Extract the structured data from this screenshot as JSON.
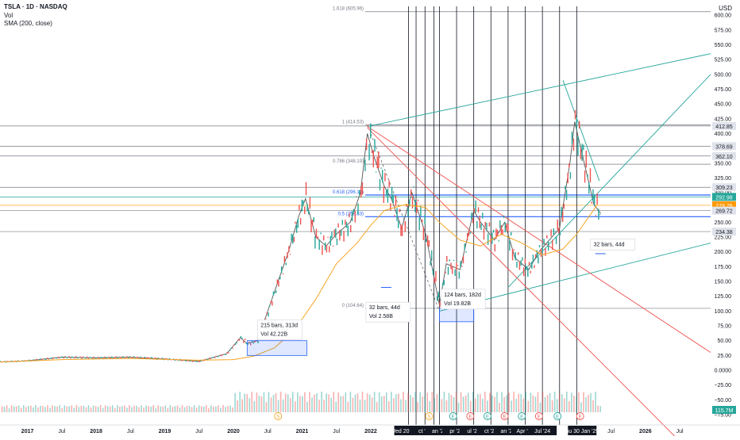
{
  "legend": {
    "symbol": "TSLA · 1D · NASDAQ",
    "volume": "Vol",
    "sma": "SMA (200, close)"
  },
  "chart_data": {
    "type": "line",
    "currency": "USD",
    "y_ticks": [
      600,
      575,
      550,
      525,
      500,
      475,
      450,
      425,
      400,
      375,
      350,
      325,
      300,
      275,
      250,
      225,
      200,
      175,
      150,
      125,
      100,
      75,
      50,
      25,
      0
    ],
    "y_tick_labels": [
      "600.00",
      "575.00",
      "550.00",
      "525.00",
      "500.00",
      "475.00",
      "450.00",
      "425.00",
      "400.00",
      "375.00",
      "350.00",
      "325.00",
      "300.00",
      "275.00",
      "250.00",
      "225.00",
      "200.00",
      "175.00",
      "150.00",
      "125.00",
      "100.00",
      "75.00",
      "50.00",
      "25.00",
      "0.0000",
      "−25.00",
      "−50.00",
      "−75.00"
    ],
    "y_tick_values": [
      600,
      575,
      550,
      525,
      500,
      475,
      450,
      425,
      400,
      375,
      350,
      325,
      300,
      275,
      250,
      225,
      200,
      175,
      150,
      125,
      100,
      75,
      50,
      25,
      0,
      -25,
      -50,
      -75
    ],
    "ylim": [
      -75,
      615
    ],
    "x_tick_labels": [
      "2017",
      "Jul",
      "2018",
      "Jul",
      "2019",
      "Jul",
      "2020",
      "Jul",
      "2021",
      "Jul",
      "2022",
      "Wed 20 Jul '22",
      "ct '22",
      "an '23",
      "pr '23",
      "ul '23",
      "ct '23",
      "an '24",
      "Apr '24",
      "Jul '24",
      "hu 30 Jan '25",
      "Jul",
      "2026",
      "Jul"
    ],
    "x_tick_dates": [
      2017.0,
      2017.5,
      2018.0,
      2018.5,
      2019.0,
      2019.5,
      2020.0,
      2020.5,
      2021.0,
      2021.5,
      2022.0,
      2022.55,
      2022.79,
      2023.0,
      2023.25,
      2023.5,
      2023.75,
      2024.0,
      2024.25,
      2024.5,
      2025.08,
      2025.5,
      2026.0,
      2026.5
    ],
    "xlim": [
      2016.6,
      2026.95
    ],
    "price_series": {
      "name": "TSLA",
      "x": [
        2016.6,
        2017.0,
        2017.5,
        2018.0,
        2018.5,
        2019.0,
        2019.5,
        2019.9,
        2020.1,
        2020.2,
        2020.35,
        2020.5,
        2020.65,
        2020.8,
        2020.95,
        2021.05,
        2021.2,
        2021.35,
        2021.5,
        2021.7,
        2021.85,
        2021.95,
        2022.05,
        2022.2,
        2022.3,
        2022.45,
        2022.6,
        2022.8,
        2023.0,
        2023.1,
        2023.3,
        2023.5,
        2023.6,
        2023.8,
        2023.95,
        2024.1,
        2024.3,
        2024.45,
        2024.6,
        2024.75,
        2024.9,
        2024.97,
        2025.05,
        2025.15,
        2025.25,
        2025.35
      ],
      "y": [
        14,
        16,
        22,
        21,
        22,
        19,
        15,
        28,
        55,
        45,
        50,
        100,
        150,
        200,
        260,
        290,
        225,
        210,
        230,
        250,
        300,
        400,
        360,
        310,
        290,
        240,
        300,
        230,
        110,
        180,
        170,
        270,
        250,
        220,
        250,
        190,
        170,
        200,
        220,
        240,
        350,
        420,
        380,
        330,
        280,
        265
      ]
    },
    "sma_series": {
      "name": "SMA (200, close)",
      "x": [
        2016.6,
        2017.5,
        2018.5,
        2019.5,
        2020.0,
        2020.3,
        2020.6,
        2020.9,
        2021.2,
        2021.5,
        2021.8,
        2022.0,
        2022.2,
        2022.5,
        2022.8,
        2023.0,
        2023.3,
        2023.6,
        2023.9,
        2024.2,
        2024.5,
        2024.8,
        2025.0,
        2025.3
      ],
      "y": [
        14,
        18,
        20,
        17,
        18,
        24,
        38,
        70,
        120,
        180,
        215,
        245,
        270,
        280,
        275,
        250,
        220,
        210,
        230,
        215,
        195,
        205,
        230,
        280
      ]
    },
    "price_levels": [
      {
        "label": "412.85",
        "value": 412.85,
        "color": "#b2b5be"
      },
      {
        "label": "378.69",
        "value": 378.69,
        "color": "#b2b5be"
      },
      {
        "label": "362.10",
        "value": 362.1,
        "color": "#b2b5be"
      },
      {
        "label": "309.23",
        "value": 309.23,
        "color": "#b2b5be"
      },
      {
        "label": "292.98",
        "value": 292.98,
        "color": "#26a69a"
      },
      {
        "label": "278.76",
        "value": 278.76,
        "color": "#ff9800"
      },
      {
        "label": "269.72",
        "value": 269.72,
        "color": "#b2b5be"
      },
      {
        "label": "234.38",
        "value": 234.38,
        "color": "#b2b5be"
      }
    ],
    "fib_levels": [
      {
        "label": "1.618 (605.96)",
        "value": 605.96
      },
      {
        "label": "1 (414.53)",
        "value": 414.53
      },
      {
        "label": "0.786 (348.19)",
        "value": 348.19
      },
      {
        "label": "0.618 (296.13)",
        "value": 296.13
      },
      {
        "label": "0.5 (259.53)",
        "value": 259.53
      },
      {
        "label": "0 (104.64)",
        "value": 104.64
      }
    ],
    "annotations": [
      {
        "lines": [
          "215 bars, 313d",
          "Vol 42.22B"
        ]
      },
      {
        "lines": [
          "32 bars, 44d",
          "Vol 2.58B"
        ]
      },
      {
        "lines": [
          "124 bars, 182d",
          "Vol 19.82B"
        ]
      },
      {
        "lines": [
          "32 bars, 44d"
        ]
      }
    ],
    "volume_badge": "115.7M",
    "event_markers": [
      "S",
      "S",
      "E",
      "E",
      "E",
      "E",
      "E",
      "E",
      "E",
      "E"
    ]
  },
  "colors": {
    "up": "#26a69a",
    "down": "#ef5350",
    "sma": "#f5a623",
    "fib": "#2962ff",
    "trend_green": "#26a69a",
    "trend_red": "#ef5350",
    "vline": "#131722"
  }
}
